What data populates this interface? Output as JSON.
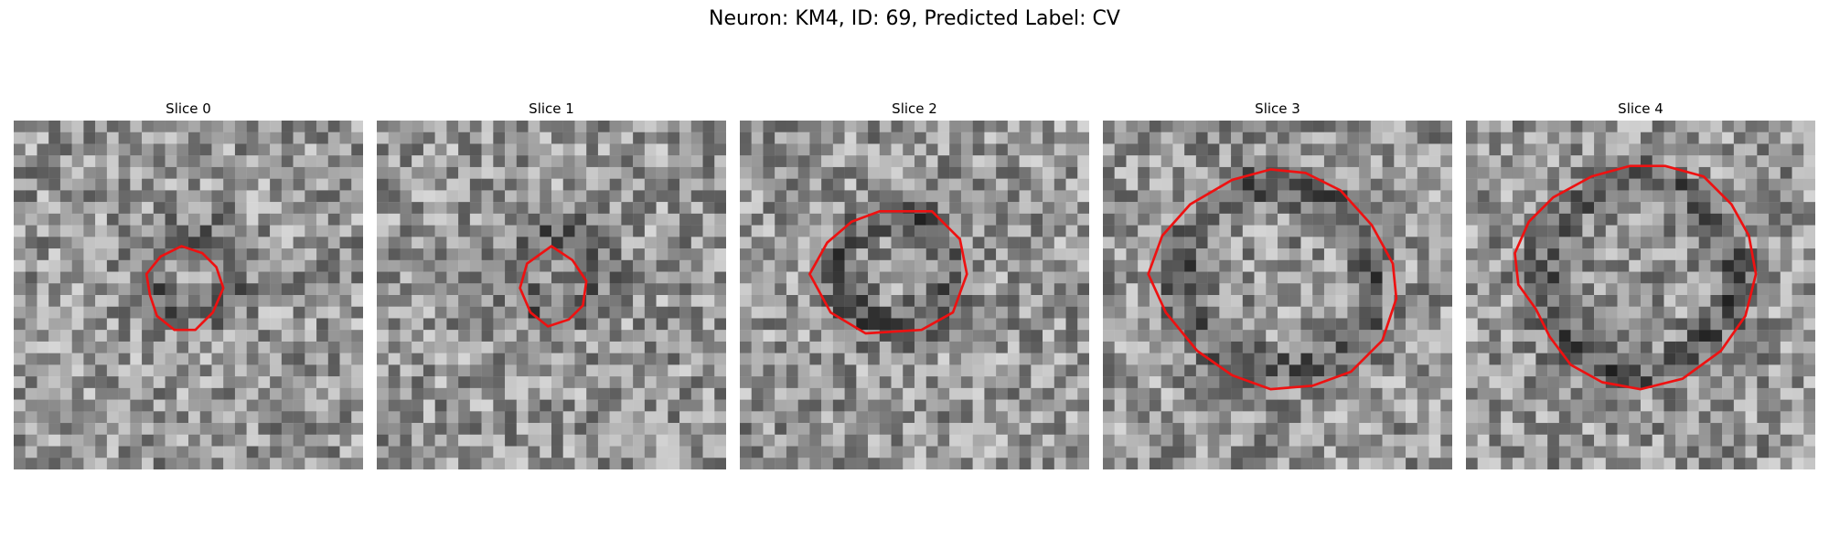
{
  "figure": {
    "title": "Neuron: KM4, ID: 69, Predicted Label: CV"
  },
  "colors": {
    "contour": "#ee1111",
    "colormap": "gray"
  },
  "panels": [
    {
      "title": "Slice 0",
      "seed": 11,
      "contour": [
        [
          48,
          36
        ],
        [
          54,
          38
        ],
        [
          58,
          42
        ],
        [
          60,
          48
        ],
        [
          57,
          55
        ],
        [
          52,
          60
        ],
        [
          46,
          60
        ],
        [
          41,
          56
        ],
        [
          39,
          50
        ],
        [
          38,
          44
        ],
        [
          42,
          39
        ]
      ],
      "ring": {
        "cx": 52,
        "cy": 44,
        "r": 12,
        "strength": 40
      }
    },
    {
      "title": "Slice 1",
      "seed": 23,
      "contour": [
        [
          50,
          36
        ],
        [
          56,
          40
        ],
        [
          60,
          46
        ],
        [
          59,
          53
        ],
        [
          55,
          57
        ],
        [
          49,
          59
        ],
        [
          44,
          55
        ],
        [
          41,
          48
        ],
        [
          43,
          41
        ]
      ],
      "ring": {
        "cx": 52,
        "cy": 44,
        "r": 11,
        "strength": 45
      }
    },
    {
      "title": "Slice 2",
      "seed": 37,
      "contour": [
        [
          40,
          26
        ],
        [
          55,
          26
        ],
        [
          63,
          34
        ],
        [
          65,
          44
        ],
        [
          61,
          55
        ],
        [
          52,
          60
        ],
        [
          36,
          61
        ],
        [
          26,
          55
        ],
        [
          20,
          44
        ],
        [
          25,
          35
        ],
        [
          32,
          29
        ]
      ],
      "ring": {
        "cx": 44,
        "cy": 43,
        "r": 16,
        "strength": 55
      }
    },
    {
      "title": "Slice 3",
      "seed": 49,
      "contour": [
        [
          58,
          15
        ],
        [
          68,
          20
        ],
        [
          77,
          30
        ],
        [
          83,
          41
        ],
        [
          84,
          51
        ],
        [
          80,
          63
        ],
        [
          71,
          72
        ],
        [
          60,
          76
        ],
        [
          48,
          77
        ],
        [
          37,
          73
        ],
        [
          27,
          66
        ],
        [
          18,
          55
        ],
        [
          13,
          44
        ],
        [
          17,
          33
        ],
        [
          25,
          24
        ],
        [
          37,
          17
        ],
        [
          48,
          14
        ]
      ],
      "ring": {
        "cx": 50,
        "cy": 45,
        "r": 27,
        "strength": 55
      }
    },
    {
      "title": "Slice 4",
      "seed": 61,
      "contour": [
        [
          57,
          13
        ],
        [
          68,
          16
        ],
        [
          76,
          24
        ],
        [
          81,
          33
        ],
        [
          83,
          44
        ],
        [
          80,
          56
        ],
        [
          73,
          66
        ],
        [
          62,
          74
        ],
        [
          50,
          77
        ],
        [
          39,
          75
        ],
        [
          30,
          70
        ],
        [
          24,
          62
        ],
        [
          20,
          54
        ],
        [
          15,
          47
        ],
        [
          14,
          38
        ],
        [
          18,
          29
        ],
        [
          25,
          22
        ],
        [
          36,
          16
        ],
        [
          47,
          13
        ]
      ],
      "ring": {
        "cx": 49,
        "cy": 45,
        "r": 27,
        "strength": 55
      }
    }
  ]
}
